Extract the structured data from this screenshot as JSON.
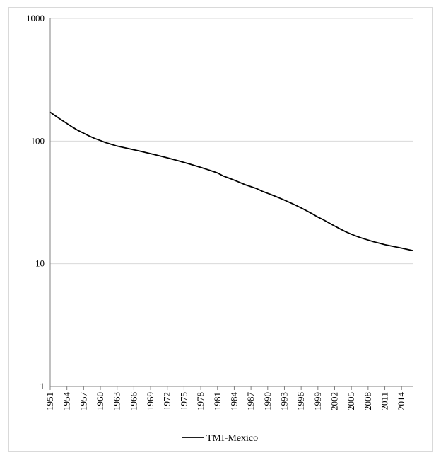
{
  "chart_data": {
    "type": "line",
    "title": "",
    "xlabel": "",
    "ylabel": "",
    "yscale": "log",
    "ylim": [
      1,
      1000
    ],
    "ytick_labels": [
      "1",
      "10",
      "100",
      "1000"
    ],
    "ytick_values": [
      1,
      10,
      100,
      1000
    ],
    "grid": "horizontal",
    "legend": "bottom-center",
    "xtick_labels": [
      "1951",
      "1954",
      "1957",
      "1960",
      "1963",
      "1966",
      "1969",
      "1972",
      "1975",
      "1978",
      "1981",
      "1984",
      "1987",
      "1990",
      "1993",
      "1996",
      "1999",
      "2002",
      "2005",
      "2008",
      "2011",
      "2014"
    ],
    "x": [
      1951,
      1952,
      1953,
      1954,
      1955,
      1956,
      1957,
      1958,
      1959,
      1960,
      1961,
      1962,
      1963,
      1964,
      1965,
      1966,
      1967,
      1968,
      1969,
      1970,
      1971,
      1972,
      1973,
      1974,
      1975,
      1976,
      1977,
      1978,
      1979,
      1980,
      1981,
      1982,
      1983,
      1984,
      1985,
      1986,
      1987,
      1988,
      1989,
      1990,
      1991,
      1992,
      1993,
      1994,
      1995,
      1996,
      1997,
      1998,
      1999,
      2000,
      2001,
      2002,
      2003,
      2004,
      2005,
      2006,
      2007,
      2008,
      2009,
      2010,
      2011,
      2012,
      2013,
      2014,
      2015,
      2016
    ],
    "series": [
      {
        "name": "TMI-Mexico",
        "color": "#000000",
        "values": [
          172,
          160,
          149,
          139,
          130,
          122,
          116,
          110,
          105,
          101,
          97,
          94,
          91,
          89,
          87,
          85,
          83,
          81,
          79,
          77,
          75,
          73,
          71,
          69,
          67,
          65,
          63,
          61,
          59,
          57,
          55,
          52,
          50,
          48,
          46,
          44,
          42.5,
          41,
          39,
          37.5,
          36,
          34.5,
          33,
          31.5,
          30,
          28.5,
          27,
          25.5,
          24,
          22.8,
          21.5,
          20.3,
          19.2,
          18.2,
          17.4,
          16.7,
          16.1,
          15.6,
          15.1,
          14.7,
          14.3,
          14,
          13.7,
          13.4,
          13.1,
          12.8
        ]
      }
    ]
  }
}
